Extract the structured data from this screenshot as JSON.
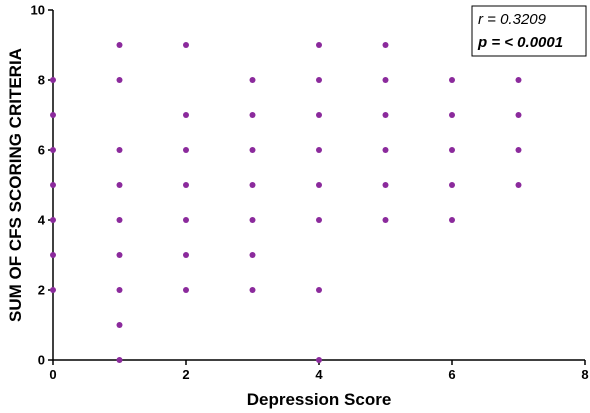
{
  "chart_data": {
    "type": "scatter",
    "xlabel": "Depression Score",
    "ylabel": "SUM OF CFS SCORING CRITERIA",
    "xlim": [
      0,
      8
    ],
    "ylim": [
      0,
      10
    ],
    "x_ticks": [
      0,
      2,
      4,
      6,
      8
    ],
    "y_ticks": [
      0,
      2,
      4,
      6,
      8,
      10
    ],
    "grid": false,
    "marker_color": "#8B2A9C",
    "annotations": {
      "r_text": "r = 0.3209",
      "p_text": "p = < 0.0001"
    },
    "points": [
      [
        0,
        2
      ],
      [
        0,
        3
      ],
      [
        0,
        4
      ],
      [
        0,
        5
      ],
      [
        0,
        6
      ],
      [
        0,
        7
      ],
      [
        0,
        8
      ],
      [
        1,
        0
      ],
      [
        1,
        1
      ],
      [
        1,
        2
      ],
      [
        1,
        3
      ],
      [
        1,
        4
      ],
      [
        1,
        5
      ],
      [
        1,
        6
      ],
      [
        1,
        8
      ],
      [
        1,
        9
      ],
      [
        2,
        2
      ],
      [
        2,
        3
      ],
      [
        2,
        4
      ],
      [
        2,
        5
      ],
      [
        2,
        6
      ],
      [
        2,
        7
      ],
      [
        2,
        9
      ],
      [
        3,
        2
      ],
      [
        3,
        3
      ],
      [
        3,
        4
      ],
      [
        3,
        5
      ],
      [
        3,
        6
      ],
      [
        3,
        7
      ],
      [
        3,
        8
      ],
      [
        4,
        0
      ],
      [
        4,
        2
      ],
      [
        4,
        4
      ],
      [
        4,
        5
      ],
      [
        4,
        6
      ],
      [
        4,
        7
      ],
      [
        4,
        8
      ],
      [
        4,
        9
      ],
      [
        5,
        4
      ],
      [
        5,
        5
      ],
      [
        5,
        6
      ],
      [
        5,
        7
      ],
      [
        5,
        8
      ],
      [
        5,
        9
      ],
      [
        6,
        4
      ],
      [
        6,
        5
      ],
      [
        6,
        6
      ],
      [
        6,
        7
      ],
      [
        6,
        8
      ],
      [
        7,
        5
      ],
      [
        7,
        6
      ],
      [
        7,
        7
      ],
      [
        7,
        8
      ]
    ]
  }
}
